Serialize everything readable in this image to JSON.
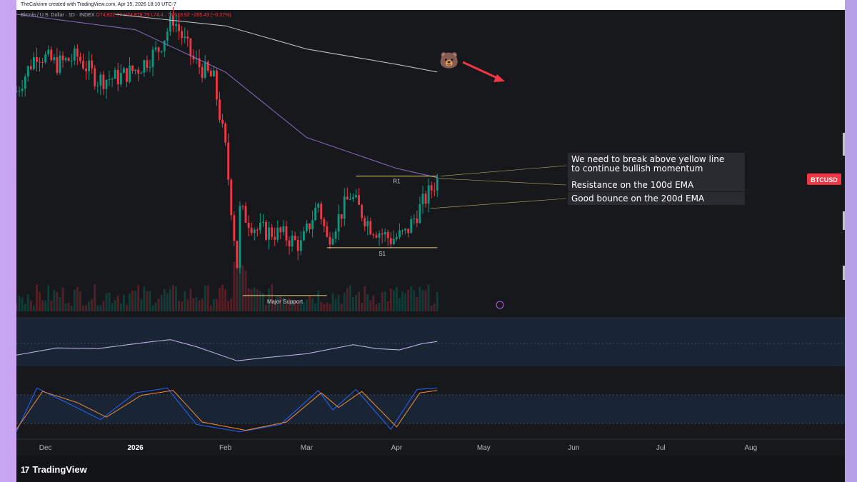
{
  "header": {
    "credit": "TheCalvinm created with TradingView.com, Apr 15, 2026 18:10 UTC-7",
    "symbol": "Bitcoin / U.S. Dollar · 1D · INDEX",
    "ohlc": "O74,822.77 H74,878.79 L74,4.. 74,613.92 −205.43 (−0.27%)"
  },
  "footer": {
    "brand": "TradingView"
  },
  "colors": {
    "up": "#089981",
    "down": "#f23645",
    "ema100": "#8e6dc6",
    "ema200": "#c7c9cf",
    "level": "#e6d37a",
    "rsi": "#c9b8ef",
    "stoch_k": "#2962ff",
    "stoch_d": "#f28a2e",
    "badge": "#f23645",
    "arrow": "#f23645"
  },
  "chart_data": {
    "type": "line",
    "title": "Bitcoin / U.S. Dollar · 1D · INDEX",
    "symbol_badge": "BTCUSD",
    "x_ticks": [
      "Dec",
      "2026",
      "Feb",
      "Mar",
      "Apr",
      "May",
      "Jun",
      "Jul",
      "Aug"
    ],
    "x_range": [
      "2025-11-21",
      "2026-08-28"
    ],
    "y_range": [
      58000,
      96000
    ],
    "price_series": [
      {
        "date": "2025-11-21",
        "close": 86000
      },
      {
        "date": "2025-11-28",
        "close": 91000
      },
      {
        "date": "2025-12-05",
        "close": 89500
      },
      {
        "date": "2025-12-12",
        "close": 90500
      },
      {
        "date": "2025-12-19",
        "close": 87500
      },
      {
        "date": "2025-12-26",
        "close": 87800
      },
      {
        "date": "2026-01-02",
        "close": 89000
      },
      {
        "date": "2026-01-09",
        "close": 91500
      },
      {
        "date": "2026-01-14",
        "close": 95500
      },
      {
        "date": "2026-01-21",
        "close": 90000
      },
      {
        "date": "2026-01-28",
        "close": 87500
      },
      {
        "date": "2026-02-01",
        "close": 78500
      },
      {
        "date": "2026-02-05",
        "close": 63500
      },
      {
        "date": "2026-02-06",
        "close": 70500
      },
      {
        "date": "2026-02-12",
        "close": 68000
      },
      {
        "date": "2026-02-20",
        "close": 67500
      },
      {
        "date": "2026-02-27",
        "close": 66000
      },
      {
        "date": "2026-03-05",
        "close": 71500
      },
      {
        "date": "2026-03-08",
        "close": 66700
      },
      {
        "date": "2026-03-16",
        "close": 72500
      },
      {
        "date": "2026-03-23",
        "close": 68500
      },
      {
        "date": "2026-03-30",
        "close": 66800
      },
      {
        "date": "2026-04-04",
        "close": 67500
      },
      {
        "date": "2026-04-10",
        "close": 71500
      },
      {
        "date": "2026-04-15",
        "close": 74600
      }
    ],
    "ema_100": [
      {
        "date": "2025-11-21",
        "value": 96000
      },
      {
        "date": "2026-01-01",
        "value": 94000
      },
      {
        "date": "2026-02-01",
        "value": 88500
      },
      {
        "date": "2026-03-01",
        "value": 80000
      },
      {
        "date": "2026-04-01",
        "value": 76000
      },
      {
        "date": "2026-04-15",
        "value": 74800
      }
    ],
    "ema_200": [
      {
        "date": "2025-12-25",
        "value": 96000
      },
      {
        "date": "2026-02-01",
        "value": 94500
      },
      {
        "date": "2026-03-01",
        "value": 91500
      },
      {
        "date": "2026-04-01",
        "value": 89500
      },
      {
        "date": "2026-04-15",
        "value": 88500
      }
    ],
    "levels": [
      {
        "name": "R1",
        "value": 75000,
        "from": "2026-03-18",
        "to": "2026-04-15"
      },
      {
        "name": "S1",
        "value": 65700,
        "from": "2026-03-08",
        "to": "2026-04-15"
      },
      {
        "name": "Major Support",
        "value": 59500,
        "from": "2026-02-07",
        "to": "2026-03-08"
      }
    ],
    "annotations": [
      "We need to break above yellow line\nto continue bullish momentum",
      "Resistance on the 100d EMA",
      "Good bounce on the 200d EMA"
    ],
    "rsi": [
      {
        "date": "2025-11-21",
        "value": 42
      },
      {
        "date": "2025-12-05",
        "value": 53
      },
      {
        "date": "2025-12-19",
        "value": 52
      },
      {
        "date": "2026-01-05",
        "value": 62
      },
      {
        "date": "2026-01-13",
        "value": 66
      },
      {
        "date": "2026-01-22",
        "value": 55
      },
      {
        "date": "2026-02-05",
        "value": 33
      },
      {
        "date": "2026-02-15",
        "value": 38
      },
      {
        "date": "2026-03-01",
        "value": 44
      },
      {
        "date": "2026-03-17",
        "value": 58
      },
      {
        "date": "2026-03-25",
        "value": 52
      },
      {
        "date": "2026-04-02",
        "value": 50
      },
      {
        "date": "2026-04-10",
        "value": 60
      },
      {
        "date": "2026-04-15",
        "value": 63
      }
    ],
    "stoch_k": [
      {
        "date": "2025-11-21",
        "value": 5
      },
      {
        "date": "2025-11-28",
        "value": 95
      },
      {
        "date": "2025-12-10",
        "value": 60
      },
      {
        "date": "2025-12-20",
        "value": 30
      },
      {
        "date": "2026-01-01",
        "value": 85
      },
      {
        "date": "2026-01-12",
        "value": 95
      },
      {
        "date": "2026-01-22",
        "value": 20
      },
      {
        "date": "2026-02-06",
        "value": 5
      },
      {
        "date": "2026-02-20",
        "value": 20
      },
      {
        "date": "2026-03-05",
        "value": 90
      },
      {
        "date": "2026-03-10",
        "value": 50
      },
      {
        "date": "2026-03-18",
        "value": 92
      },
      {
        "date": "2026-03-30",
        "value": 10
      },
      {
        "date": "2026-04-08",
        "value": 92
      },
      {
        "date": "2026-04-15",
        "value": 95
      }
    ],
    "stoch_d": [
      {
        "date": "2025-11-21",
        "value": 10
      },
      {
        "date": "2025-11-30",
        "value": 88
      },
      {
        "date": "2025-12-12",
        "value": 65
      },
      {
        "date": "2025-12-22",
        "value": 35
      },
      {
        "date": "2026-01-03",
        "value": 80
      },
      {
        "date": "2026-01-14",
        "value": 90
      },
      {
        "date": "2026-01-24",
        "value": 25
      },
      {
        "date": "2026-02-08",
        "value": 8
      },
      {
        "date": "2026-02-22",
        "value": 25
      },
      {
        "date": "2026-03-06",
        "value": 85
      },
      {
        "date": "2026-03-12",
        "value": 55
      },
      {
        "date": "2026-03-20",
        "value": 88
      },
      {
        "date": "2026-04-01",
        "value": 15
      },
      {
        "date": "2026-04-09",
        "value": 85
      },
      {
        "date": "2026-04-15",
        "value": 90
      }
    ]
  }
}
